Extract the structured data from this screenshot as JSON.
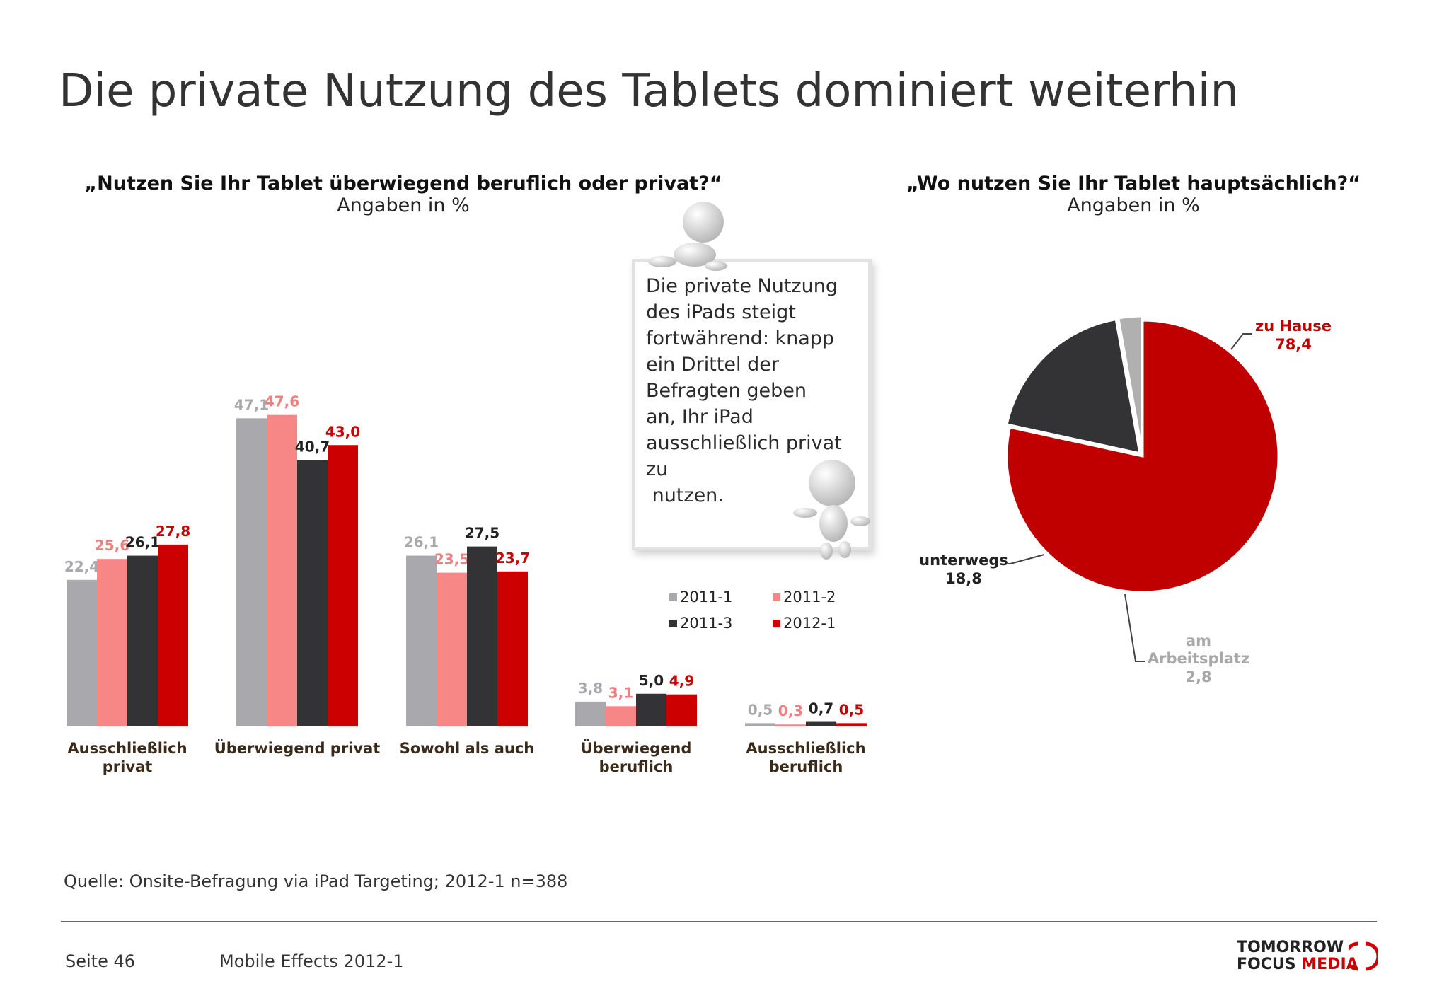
{
  "title": "Die private Nutzung des Tablets dominiert weiterhin",
  "left_chart": {
    "question": "„Nutzen Sie Ihr Tablet überwiegend beruflich oder privat?“",
    "unit": "Angaben in %"
  },
  "right_chart": {
    "question": "„Wo nutzen Sie Ihr Tablet hauptsächlich?“",
    "unit": "Angaben in %"
  },
  "note": {
    "lines": [
      "Die private Nutzung",
      "des iPads steigt",
      "fortwährend: knapp",
      "ein Drittel der",
      "Befragten geben",
      "an, Ihr iPad",
      "ausschließlich privat",
      "zu",
      " nutzen."
    ]
  },
  "colors": {
    "2011-1": "#a9a8ac",
    "2011-2": "#f78787",
    "2011-3": "#333335",
    "2012-1": "#cc0000",
    "pie_home": "#c00000",
    "pie_unterwegs": "#333335",
    "pie_arbeit": "#b0b0b0",
    "label_home": "#c00000",
    "label_arbeit": "#a8a8a8"
  },
  "legend": [
    "2011-1",
    "2011-2",
    "2011-3",
    "2012-1"
  ],
  "chart_data": [
    {
      "type": "bar",
      "categories": [
        "Ausschließlich privat",
        "Überwiegend privat",
        "Sowohl als auch",
        "Überwiegend beruflich",
        "Ausschließlich beruflich"
      ],
      "series": [
        {
          "name": "2011-1",
          "values": [
            22.4,
            47.1,
            26.1,
            3.8,
            0.5
          ],
          "labels": [
            "22,4",
            "47,1",
            "26,1",
            "3,8",
            "0,5"
          ]
        },
        {
          "name": "2011-2",
          "values": [
            25.6,
            47.6,
            23.5,
            3.1,
            0.3
          ],
          "labels": [
            "25,6",
            "47,6",
            "23,5",
            "3,1",
            "0,3"
          ]
        },
        {
          "name": "2011-3",
          "values": [
            26.1,
            40.7,
            27.5,
            5.0,
            0.7
          ],
          "labels": [
            "26,1",
            "40,7",
            "27,5",
            "5,0",
            "0,7"
          ]
        },
        {
          "name": "2012-1",
          "values": [
            27.8,
            43.0,
            23.7,
            4.9,
            0.5
          ],
          "labels": [
            "27,8",
            "43,0",
            "23,7",
            "4,9",
            "0,5"
          ]
        }
      ],
      "ylim": [
        0,
        50
      ]
    },
    {
      "type": "pie",
      "slices": [
        {
          "name": "zu Hause",
          "value": 78.4,
          "label": "78,4"
        },
        {
          "name": "unterwegs",
          "value": 18.8,
          "label": "18,8"
        },
        {
          "name": "am Arbeitsplatz",
          "value": 2.8,
          "label": "2,8"
        }
      ]
    }
  ],
  "source": "Quelle: Onsite-Befragung via iPad Targeting; 2012-1 n=388",
  "footer": {
    "page": "Seite 46",
    "title": "Mobile Effects 2012-1",
    "logo_line1": "TOMORROW",
    "logo_line2a": "FOCUS",
    "logo_line2b": "MEDIA"
  }
}
